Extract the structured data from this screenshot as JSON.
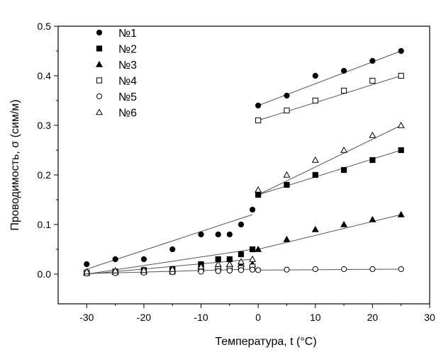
{
  "chart_data": {
    "type": "scatter",
    "xlabel": "Температура, t (°C)",
    "ylabel": "Проводимость, σ (сим/м)",
    "xlim": [
      -35,
      30
    ],
    "ylim": [
      -0.06,
      0.5
    ],
    "xticks": [
      -30,
      -20,
      -10,
      0,
      10,
      20,
      30
    ],
    "xtick_labels": [
      "-30",
      "-20",
      "-10",
      "0",
      "10",
      "20",
      "30"
    ],
    "yticks": [
      0.0,
      0.1,
      0.2,
      0.3,
      0.4,
      0.5
    ],
    "ytick_labels": [
      "0.0",
      "0.1",
      "0.2",
      "0.3",
      "0.4",
      "0.5"
    ],
    "legend_position": "top-left",
    "grid": false,
    "series": [
      {
        "name": "№1",
        "marker": "filled-circle",
        "x": [
          -30,
          -25,
          -20,
          -15,
          -10,
          -7,
          -5,
          -3,
          -1,
          0,
          5,
          10,
          15,
          20,
          25
        ],
        "y": [
          0.02,
          0.03,
          0.03,
          0.05,
          0.08,
          0.08,
          0.08,
          0.1,
          0.13,
          0.34,
          0.36,
          0.4,
          0.41,
          0.43,
          0.45
        ],
        "fit_segments": [
          [
            [
              -30,
              0.01
            ],
            [
              -1,
              0.12
            ]
          ],
          [
            [
              0,
              0.34
            ],
            [
              25,
              0.45
            ]
          ]
        ]
      },
      {
        "name": "№2",
        "marker": "filled-square",
        "x": [
          -30,
          -25,
          -20,
          -15,
          -10,
          -7,
          -5,
          -3,
          -1,
          0,
          5,
          10,
          15,
          20,
          25
        ],
        "y": [
          0.003,
          0.005,
          0.008,
          0.01,
          0.02,
          0.03,
          0.03,
          0.04,
          0.05,
          0.16,
          0.18,
          0.2,
          0.21,
          0.23,
          0.25
        ],
        "fit_segments": [
          [
            [
              -30,
              0.0
            ],
            [
              -1,
              0.05
            ]
          ],
          [
            [
              0,
              0.16
            ],
            [
              25,
              0.25
            ]
          ]
        ]
      },
      {
        "name": "№3",
        "marker": "filled-triangle",
        "x": [
          -30,
          -25,
          -20,
          -15,
          -10,
          -7,
          -5,
          -3,
          -1,
          0,
          5,
          10,
          15,
          20,
          25
        ],
        "y": [
          0.002,
          0.004,
          0.006,
          0.008,
          0.01,
          0.015,
          0.02,
          0.02,
          0.02,
          0.05,
          0.07,
          0.09,
          0.1,
          0.11,
          0.12
        ],
        "fit_segments": [
          [
            [
              -30,
              0.0
            ],
            [
              -1,
              0.03
            ]
          ],
          [
            [
              0,
              0.05
            ],
            [
              25,
              0.12
            ]
          ]
        ]
      },
      {
        "name": "№4",
        "marker": "open-square",
        "x": [
          -30,
          -25,
          -20,
          -15,
          -10,
          -7,
          -5,
          -3,
          -1,
          0,
          5,
          10,
          15,
          20,
          25
        ],
        "y": [
          0.003,
          0.004,
          0.005,
          0.005,
          0.01,
          0.01,
          0.012,
          0.012,
          0.015,
          0.31,
          0.33,
          0.35,
          0.37,
          0.39,
          0.4
        ],
        "fit_segments": [
          [
            [
              0,
              0.31
            ],
            [
              25,
              0.4
            ]
          ]
        ]
      },
      {
        "name": "№5",
        "marker": "open-circle",
        "x": [
          -30,
          -25,
          -20,
          -15,
          -10,
          -7,
          -5,
          -3,
          -1,
          0,
          5,
          10,
          15,
          20,
          25
        ],
        "y": [
          0.001,
          0.002,
          0.003,
          0.004,
          0.005,
          0.006,
          0.007,
          0.008,
          0.009,
          0.008,
          0.009,
          0.01,
          0.01,
          0.01,
          0.01
        ],
        "fit_segments": [
          [
            [
              -30,
              0.001
            ],
            [
              -1,
              0.01
            ]
          ],
          [
            [
              0,
              0.008
            ],
            [
              25,
              0.01
            ]
          ]
        ]
      },
      {
        "name": "№6",
        "marker": "open-triangle",
        "x": [
          -30,
          -25,
          -20,
          -15,
          -10,
          -7,
          -5,
          -3,
          -1,
          0,
          5,
          10,
          15,
          20,
          25
        ],
        "y": [
          0.005,
          0.007,
          0.008,
          0.01,
          0.015,
          0.02,
          0.02,
          0.025,
          0.03,
          0.17,
          0.2,
          0.23,
          0.25,
          0.28,
          0.3
        ],
        "fit_segments": [
          [
            [
              0,
              0.16
            ],
            [
              25,
              0.3
            ]
          ]
        ]
      }
    ]
  }
}
